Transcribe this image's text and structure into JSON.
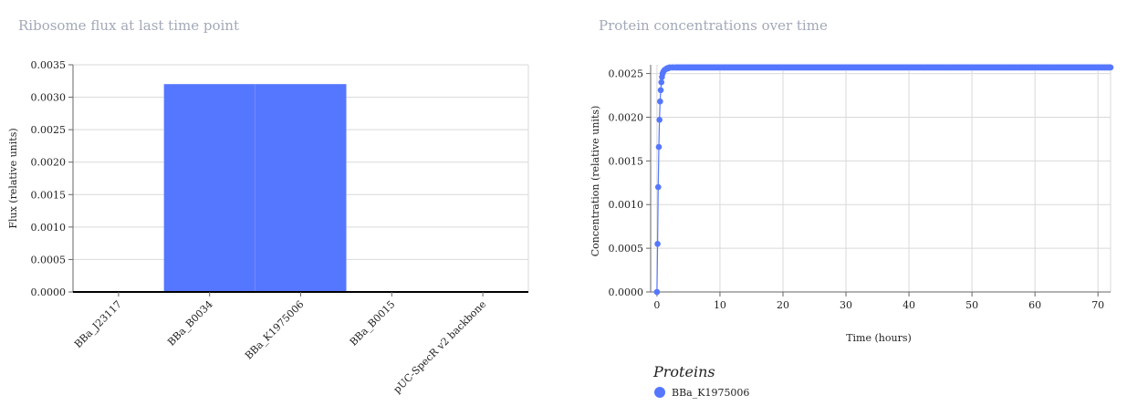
{
  "colors": {
    "series": "#5577ff",
    "band": "#cdd6fb",
    "grid": "#d9d9d9",
    "axis": "#666666",
    "title": "#a3a9b8"
  },
  "chart_data": [
    {
      "type": "bar",
      "title": "Ribosome flux at last time point",
      "xlabel": "",
      "ylabel": "Flux (relative units)",
      "categories": [
        "BBa_J23117",
        "BBa_B0034",
        "BBa_K1975006",
        "BBa_B0015",
        "pUC-SpecR v2 backbone"
      ],
      "values": [
        0,
        0.0032,
        0.0032,
        0,
        0
      ],
      "ylim": [
        0,
        0.0035
      ],
      "yticks": [
        "0.0000",
        "0.0005",
        "0.0010",
        "0.0015",
        "0.0020",
        "0.0025",
        "0.0030",
        "0.0035"
      ],
      "grid": true
    },
    {
      "type": "scatter",
      "title": "Protein concentrations over time",
      "xlabel": "Time (hours)",
      "ylabel": "Concentration (relative units)",
      "xlim": [
        -1,
        72
      ],
      "ylim": [
        0,
        0.0026
      ],
      "xticks": [
        "0",
        "10",
        "20",
        "30",
        "40",
        "50",
        "60",
        "70"
      ],
      "yticks": [
        "0.0000",
        "0.0005",
        "0.0010",
        "0.0015",
        "0.0020",
        "0.0025"
      ],
      "grid": true,
      "legend_title": "Proteins",
      "legend_position": "bottom",
      "series": [
        {
          "name": "BBa_K1975006",
          "x": [
            0,
            0.1,
            0.2,
            0.3,
            0.4,
            0.5,
            0.6,
            0.7,
            0.8,
            0.9,
            1.0,
            1.2,
            1.4,
            1.6,
            1.8,
            2.0,
            2.5,
            3.0,
            72
          ],
          "y": [
            0.0,
            0.00055,
            0.0012,
            0.00166,
            0.00197,
            0.00218,
            0.00231,
            0.0024,
            0.00246,
            0.0025,
            0.00252,
            0.00254,
            0.00255,
            0.00256,
            0.00256,
            0.00257,
            0.00257,
            0.00257,
            0.00257
          ]
        }
      ]
    }
  ]
}
